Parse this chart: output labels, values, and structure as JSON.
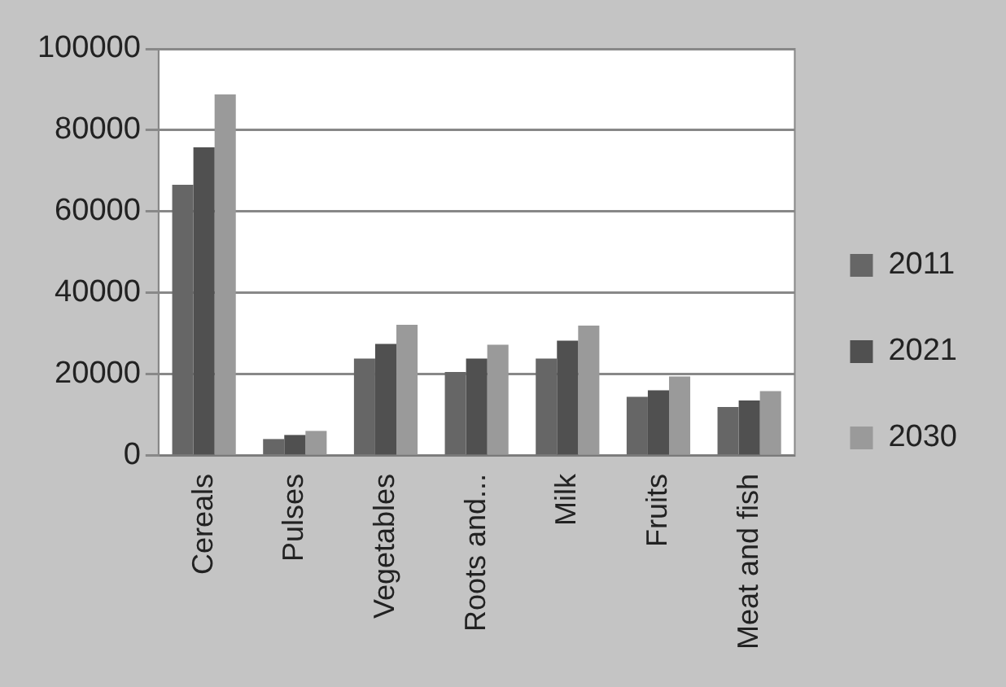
{
  "chart_data": {
    "type": "bar",
    "categories": [
      "Cereals",
      "Pulses",
      "Vegetables",
      "Roots and...",
      "Milk",
      "Fruits",
      "Meat and fish"
    ],
    "series": [
      {
        "name": "2011",
        "color": "#666666",
        "values": [
          66600,
          4100,
          23900,
          20600,
          23900,
          14500,
          12000
        ]
      },
      {
        "name": "2021",
        "color": "#505050",
        "values": [
          75800,
          5100,
          27500,
          23900,
          28300,
          16100,
          13600
        ]
      },
      {
        "name": "2030",
        "color": "#9a9a9a",
        "values": [
          88800,
          6100,
          32200,
          27300,
          32000,
          19500,
          15900
        ]
      }
    ],
    "ylim": [
      0,
      100000
    ],
    "yticks": [
      0,
      20000,
      40000,
      60000,
      80000,
      100000
    ],
    "grid": "y",
    "legend": "right"
  }
}
